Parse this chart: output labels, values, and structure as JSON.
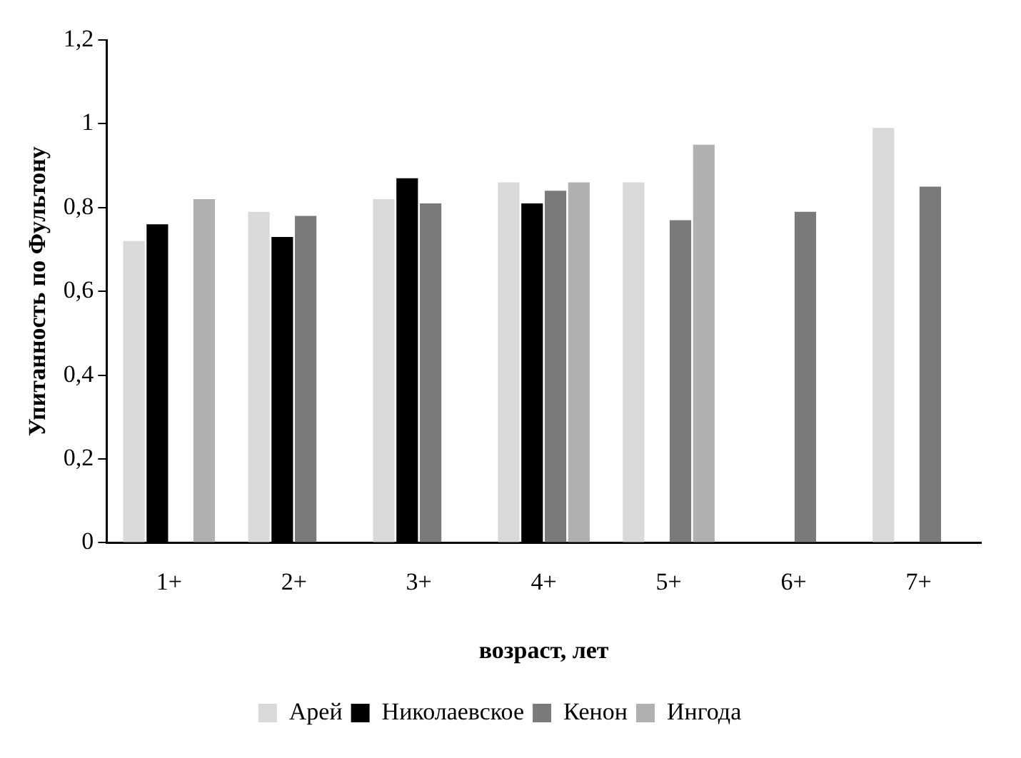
{
  "chart_data": {
    "type": "bar",
    "xlabel": "возраст, лет",
    "ylabel": "Упитанность по Фультону",
    "categories": [
      "1+",
      "2+",
      "3+",
      "4+",
      "5+",
      "6+",
      "7+"
    ],
    "series": [
      {
        "name": "Арей",
        "color": "#d9d9d9",
        "values": [
          0.72,
          0.79,
          0.82,
          0.86,
          0.86,
          null,
          0.99
        ]
      },
      {
        "name": "Николаевское",
        "color": "#000000",
        "values": [
          0.76,
          0.73,
          0.87,
          0.81,
          null,
          null,
          null
        ]
      },
      {
        "name": "Кенон",
        "color": "#7a7a7a",
        "values": [
          null,
          0.78,
          0.81,
          0.84,
          0.77,
          0.79,
          0.85
        ]
      },
      {
        "name": "Ингода",
        "color": "#b0b0b0",
        "values": [
          0.82,
          null,
          null,
          0.86,
          0.95,
          null,
          null
        ]
      }
    ],
    "ylim": [
      0,
      1.2
    ],
    "yticks": [
      0,
      {
        "value": 0.2,
        "label": "0,2"
      },
      {
        "value": 0.4,
        "label": "0,4"
      },
      {
        "value": 0.6,
        "label": "0,6"
      },
      {
        "value": 0.8,
        "label": "0,8"
      },
      1,
      {
        "value": 1.2,
        "label": "1,2"
      }
    ],
    "grid": false,
    "legend": "bottom"
  }
}
